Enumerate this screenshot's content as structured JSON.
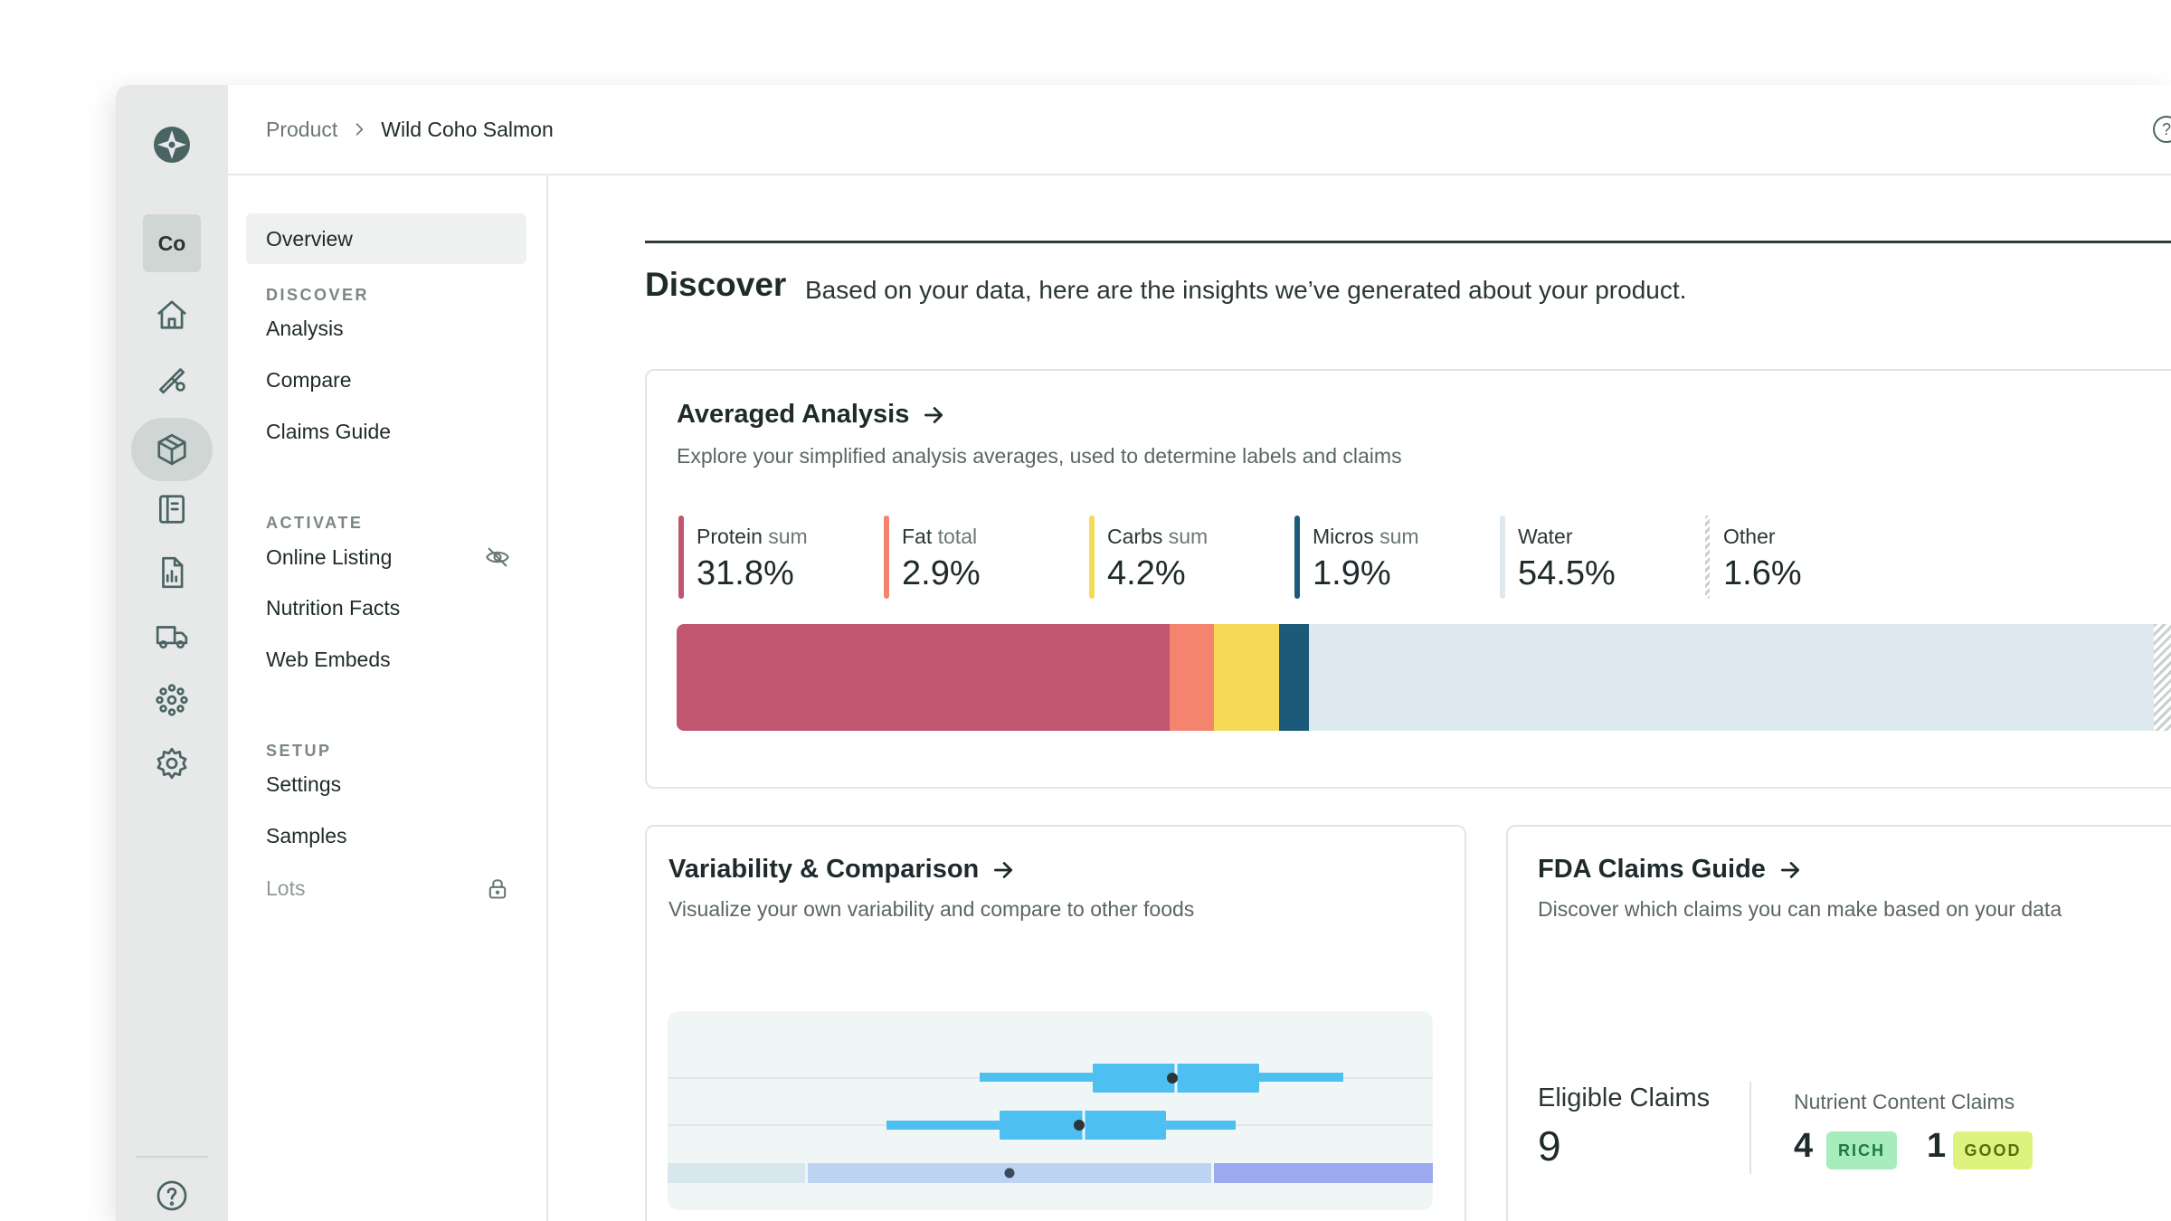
{
  "workspace": {
    "initials": "Co"
  },
  "breadcrumb": {
    "parent": "Product",
    "current": "Wild Coho Salmon"
  },
  "subnav": {
    "overview": "Overview",
    "sections": [
      {
        "title": "DISCOVER",
        "items": [
          "Analysis",
          "Compare",
          "Claims Guide"
        ]
      },
      {
        "title": "ACTIVATE",
        "items": [
          "Online Listing",
          "Nutrition Facts",
          "Web Embeds"
        ]
      },
      {
        "title": "SETUP",
        "items": [
          "Settings",
          "Samples",
          "Lots"
        ]
      }
    ]
  },
  "discover": {
    "title": "Discover",
    "subtitle": "Based on your data, here are the insights we’ve generated about your product."
  },
  "averaged": {
    "title": "Averaged Analysis",
    "subtitle": "Explore your simplified analysis averages, used to determine labels and claims",
    "stats": [
      {
        "label": "Protein",
        "suffix": "sum",
        "value": "31.8%",
        "pct": 31.8,
        "color": "#c0566f"
      },
      {
        "label": "Fat",
        "suffix": "total",
        "value": "2.9%",
        "pct": 2.9,
        "color": "#f5846f"
      },
      {
        "label": "Carbs",
        "suffix": "sum",
        "value": "4.2%",
        "pct": 4.2,
        "color": "#f4da57"
      },
      {
        "label": "Micros",
        "suffix": "sum",
        "value": "1.9%",
        "pct": 1.9,
        "color": "#1b5a78"
      },
      {
        "label": "Water",
        "suffix": "",
        "value": "54.5%",
        "pct": 54.5,
        "color": "#dde9ef"
      },
      {
        "label": "Other",
        "suffix": "",
        "value": "1.6%",
        "pct": 1.6,
        "color": "#c9d0cf"
      }
    ]
  },
  "variability": {
    "title": "Variability & Comparison",
    "subtitle": "Visualize your own variability and compare to other foods"
  },
  "fda": {
    "title": "FDA Claims Guide",
    "subtitle": "Discover which claims you can make based on your data",
    "eligible_label": "Eligible Claims",
    "eligible_value": "9",
    "nutrient_label": "Nutrient Content Claims",
    "rich_count": "4",
    "rich_label": "RICH",
    "good_count": "1",
    "good_label": "GOOD"
  },
  "colors": {
    "rich_bg": "#a6ecbd",
    "rich_fg": "#1f7a46",
    "good_bg": "#def27e",
    "good_fg": "#5b6d10",
    "box_blue": "#4dbff0"
  }
}
